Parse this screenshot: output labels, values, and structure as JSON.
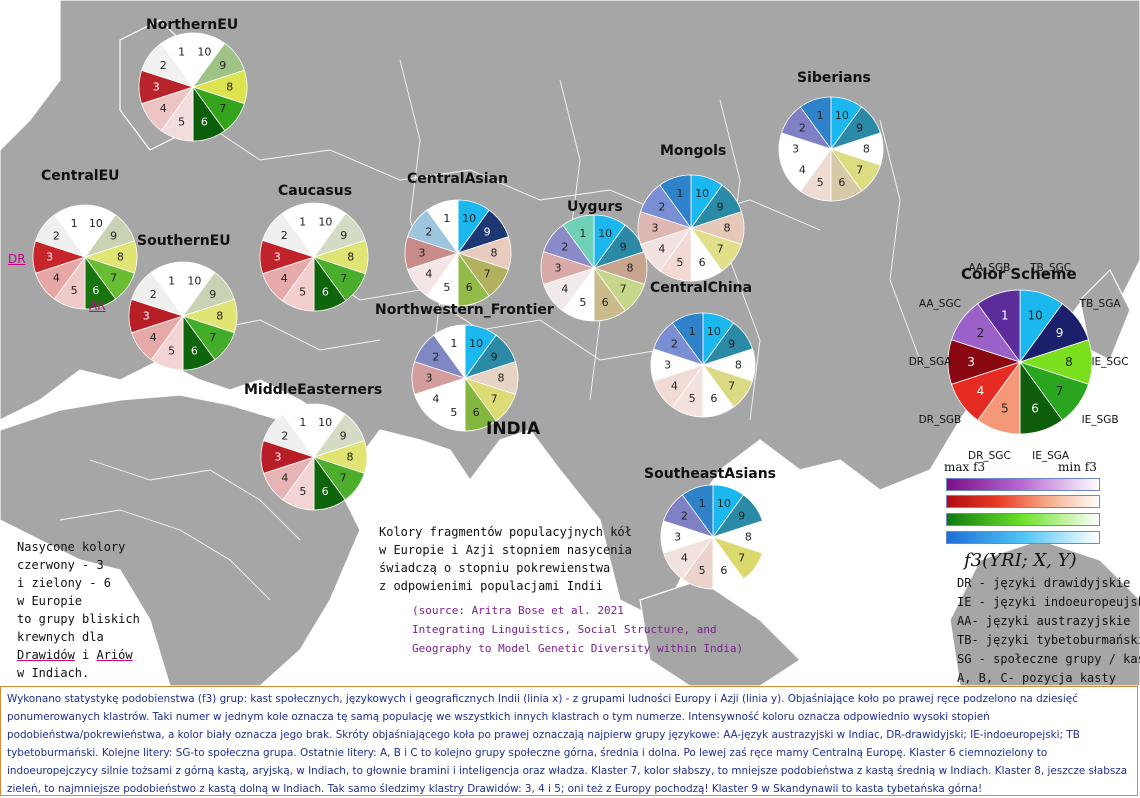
{
  "map_title_india": "INDIA",
  "clusters": [
    {
      "name": "NorthernEU",
      "labels": [
        "10",
        "9",
        "8",
        "7",
        "6",
        "5",
        "4",
        "3",
        "2",
        "1"
      ],
      "colors": [
        "#ffffff",
        "#9fc387",
        "#dbe34f",
        "#33a41c",
        "#0b5e0a",
        "#f2dcdc",
        "#ecc4c4",
        "#b9242a",
        "#f1f1f1",
        "#ffffff"
      ]
    },
    {
      "name": "CentralEU",
      "labels": [
        "10",
        "9",
        "8",
        "7",
        "6",
        "5",
        "4",
        "3",
        "2",
        "1"
      ],
      "colors": [
        "#ffffff",
        "#c9d2b2",
        "#dfe472",
        "#6abd33",
        "#17740f",
        "#f0c9c9",
        "#e8a7a7",
        "#c6252a",
        "#efefef",
        "#ffffff"
      ]
    },
    {
      "name": "SouthernEU",
      "labels": [
        "10",
        "9",
        "8",
        "7",
        "6",
        "5",
        "4",
        "3",
        "2",
        "1"
      ],
      "colors": [
        "#ffffff",
        "#c9d2b2",
        "#dfe472",
        "#43ad2a",
        "#0f650c",
        "#f2d4d4",
        "#e6a9a9",
        "#b81e25",
        "#efefef",
        "#ffffff"
      ]
    },
    {
      "name": "Caucasus",
      "labels": [
        "10",
        "9",
        "8",
        "7",
        "6",
        "5",
        "4",
        "3",
        "2",
        "1"
      ],
      "colors": [
        "#ffffff",
        "#d4dbc4",
        "#dfe472",
        "#4aad2b",
        "#0f650c",
        "#f2cece",
        "#e6aaaa",
        "#c0242a",
        "#efefef",
        "#ffffff"
      ]
    },
    {
      "name": "MiddleEasterners",
      "labels": [
        "10",
        "9",
        "8",
        "7",
        "6",
        "5",
        "4",
        "3",
        "2",
        "1"
      ],
      "colors": [
        "#ffffff",
        "#d4dbc4",
        "#dfe472",
        "#4cae2c",
        "#0f650c",
        "#f2d4d4",
        "#e6b4b4",
        "#b81e25",
        "#efefef",
        "#ffffff"
      ]
    },
    {
      "name": "CentralAsian",
      "labels": [
        "10",
        "9",
        "8",
        "7",
        "6",
        "5",
        "4",
        "3",
        "2",
        "1"
      ],
      "colors": [
        "#1ab8ee",
        "#1d3773",
        "#e8ccbf",
        "#b1b15e",
        "#93bb49",
        "#ffffff",
        "#f4e6e6",
        "#c98a8a",
        "#9ec5de",
        "#ffffff"
      ]
    },
    {
      "name": "Uygurs",
      "labels": [
        "10",
        "9",
        "8",
        "7",
        "6",
        "5",
        "4",
        "3",
        "2",
        "1"
      ],
      "colors": [
        "#1ab8ee",
        "#2b89a6",
        "#c7a58f",
        "#c6d68a",
        "#c9bc8a",
        "#ffffff",
        "#f2eaea",
        "#d9a9a9",
        "#8a8bc8",
        "#6fd1b8"
      ]
    },
    {
      "name": "Northwestern_Frontier",
      "labels": [
        "10",
        "9",
        "8",
        "7",
        "6",
        "5",
        "4",
        "3",
        "2",
        "1"
      ],
      "colors": [
        "#1ab8ee",
        "#2b8aa6",
        "#e7d3c4",
        "#dcdc76",
        "#82b63c",
        "#ffffff",
        "#ffffff",
        "#d39d9d",
        "#8088c4",
        "#ffffff"
      ]
    },
    {
      "name": "Mongols",
      "labels": [
        "10",
        "9",
        "8",
        "7",
        "6",
        "5",
        "4",
        "3",
        "2",
        "1"
      ],
      "colors": [
        "#1ab8ee",
        "#2b8aa6",
        "#e5c8b7",
        "#e0e08a",
        "#ffffff",
        "#f2d9d3",
        "#f2e2df",
        "#dfb7b2",
        "#7a8ed3",
        "#2d82c9"
      ]
    },
    {
      "name": "CentralChina",
      "labels": [
        "10",
        "9",
        "8",
        "7",
        "6",
        "5",
        "4",
        "3",
        "2",
        "1"
      ],
      "colors": [
        "#1ab8ee",
        "#2b8aa6",
        "#ffffff",
        "#d9da83",
        "#ffffff",
        "#f3e2dd",
        "#f0dcd5",
        "#ffffff",
        "#7a8ed3",
        "#2d82c9"
      ]
    },
    {
      "name": "Siberians",
      "labels": [
        "10",
        "9",
        "8",
        "7",
        "6",
        "5",
        "4",
        "3",
        "2",
        "1"
      ],
      "colors": [
        "#1ab8ee",
        "#2b8aa6",
        "#ffffff",
        "#dcdc80",
        "#d6c9a8",
        "#eedcd4",
        "#ffffff",
        "#ffffff",
        "#8080c7",
        "#2d82c9"
      ]
    },
    {
      "name": "SoutheastAsians",
      "labels": [
        "10",
        "9",
        "8",
        "7",
        "6",
        "5",
        "4",
        "3",
        "2",
        "1"
      ],
      "colors": [
        "#1ab8ee",
        "#2b8aa6",
        "#ffffff",
        "#dbd96d",
        "#ffffff",
        "#ecd4cc",
        "#f1e2dd",
        "#ffffff",
        "#8080c7",
        "#2d82c9"
      ]
    }
  ],
  "color_scheme": {
    "title": "Color Scheme",
    "labels": [
      "10",
      "9",
      "8",
      "7",
      "6",
      "5",
      "4",
      "3",
      "2",
      "1"
    ],
    "colors": [
      "#1ab8ee",
      "#1b1f6c",
      "#7ae01d",
      "#2aa51e",
      "#0d5d0a",
      "#f59877",
      "#e62b23",
      "#8a0812",
      "#9b61c9",
      "#5b2c9a"
    ],
    "outer_labels": [
      "TB_SGC",
      "TB_SGA",
      "IE_SGC",
      "IE_SGB",
      "IE_SGA",
      "DR_SGC",
      "DR_SGB",
      "DR_SGA",
      "AA_SGC",
      "AA_SGB"
    ],
    "max_label": "max f3",
    "min_label": "min f3",
    "gradients": [
      [
        "#7b0f86",
        "#b96bd2",
        "#ffffff"
      ],
      [
        "#b00d13",
        "#e83924",
        "#f6ad8a",
        "#ffffff"
      ],
      [
        "#0f7a0e",
        "#6ee22b",
        "#ffffff"
      ],
      [
        "#1e6fd6",
        "#4fc5f4",
        "#ffffff"
      ]
    ],
    "formula": "f3(YRI; X, Y)"
  },
  "map_labels": {
    "dr": "DR",
    "ar": "AR"
  },
  "left_note": {
    "lines": [
      "Nasycone kolory",
      "czerwony - 3",
      "i zielony - 6",
      "w Europie",
      "to grupy bliskich",
      "krewnych dla"
    ],
    "line7_a": "Drawidów",
    "line7_b": " i ",
    "line7_c": "Ariów",
    "line8": "w Indiach."
  },
  "center_note": [
    "Kolory fragmentów populacyjnych kół",
    "w Europie i Azji stopniem nasycenia",
    "świadczą o stopniu pokrewienstwa",
    "z odpowienimi populacjami Indii"
  ],
  "source": [
    "(source: Aritra Bose et al. 2021",
    "Integrating Linguistics, Social Structure, and",
    "Geography to Model Genetic Diversity within India)"
  ],
  "abbreviations": [
    "DR - języki drawidyjskie",
    "IE - języki indoeuropeujskie",
    "AA- języki austrazyjskie",
    "TB- języki tybetoburmański",
    "SG - społeczne grupy / kasty",
    "A, B, C- pozycja kasty"
  ],
  "footer": "Wykonano statystykę podobienstwa (f3) grup: kast społecznych, językowych i geograficznych Indii (linia x)  - z grupami ludności Europy i Azji (linia y). Objaśniające koło po prawej ręce podzelono na dziesięć ponumerowanych klastrów. Taki numer w jednym kole oznacza tę samą populację we wszystkich innych klastrach o tym numerze. Intensywność koloru oznacza odpowiednio wysoki stopień podobieństwa/pokrewieństwa, a kolor biały oznacza jego brak. Skróty objaśniającego koła po prawej oznaczają najpierw grupy językowe: AA-język austrazyjski w Indiac, DR-drawidyjski; IE-indoeuropejski; TB tybetoburmański. Kolejne litery: SG-to społeczna grupa. Ostatnie litery: A, B i C to kolejno grupy społeczne górna, średnia i dolna. Po lewej zaś ręce mamy Centralną Europę. Klaster 6 ciemnozielony to indoeuropejczycy silnie tożsami z górną kastą, aryjską, w Indiach, to głownie bramini i inteligencja oraz władza. Klaster 7, kolor słabszy, to mniejsze podobieństwa z kastą średnią w Indiach. Klaster 8, jeszcze słabsza zieleń, to najmniejsze podobieństwo z kastą dolną w Indiach. Tak samo śledzimy klastry Drawidów: 3, 4 i 5; oni też z Europy pochodzą!  Klaster 9 w Skandynawii to kasta tybetańska górna!"
}
